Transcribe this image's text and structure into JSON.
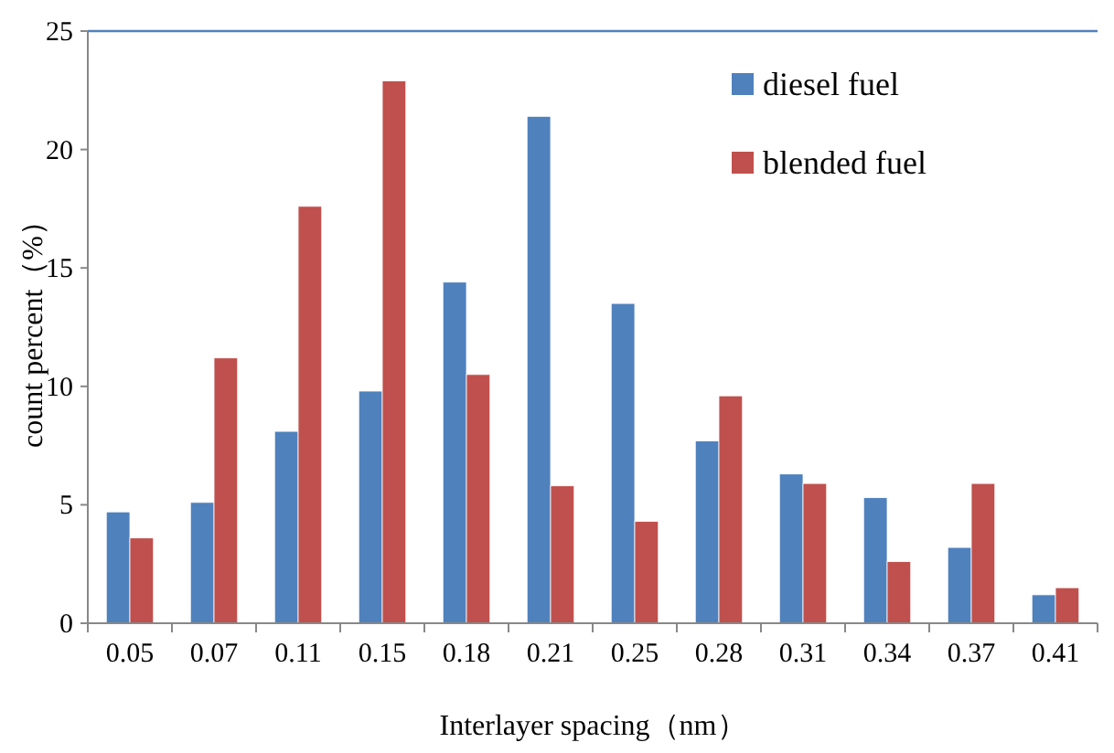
{
  "chart_data": {
    "type": "bar",
    "xlabel": "Interlayer spacing（nm）",
    "ylabel": "count percent（%）",
    "categories": [
      "0.05",
      "0.07",
      "0.11",
      "0.15",
      "0.18",
      "0.21",
      "0.25",
      "0.28",
      "0.31",
      "0.34",
      "0.37",
      "0.41"
    ],
    "series": [
      {
        "name": "diesel fuel",
        "color": "#4f81bd",
        "values": [
          4.7,
          5.1,
          8.1,
          9.8,
          14.4,
          21.4,
          13.5,
          7.7,
          6.3,
          5.3,
          3.2,
          1.2
        ]
      },
      {
        "name": "blended fuel",
        "color": "#c0504d",
        "values": [
          3.6,
          11.2,
          17.6,
          22.9,
          10.5,
          5.8,
          4.3,
          9.6,
          5.9,
          2.6,
          5.9,
          1.5
        ]
      }
    ],
    "ylim": [
      0,
      25
    ],
    "yticks": [
      0,
      5,
      10,
      15,
      20,
      25
    ],
    "grid": false,
    "legend": "top right"
  }
}
